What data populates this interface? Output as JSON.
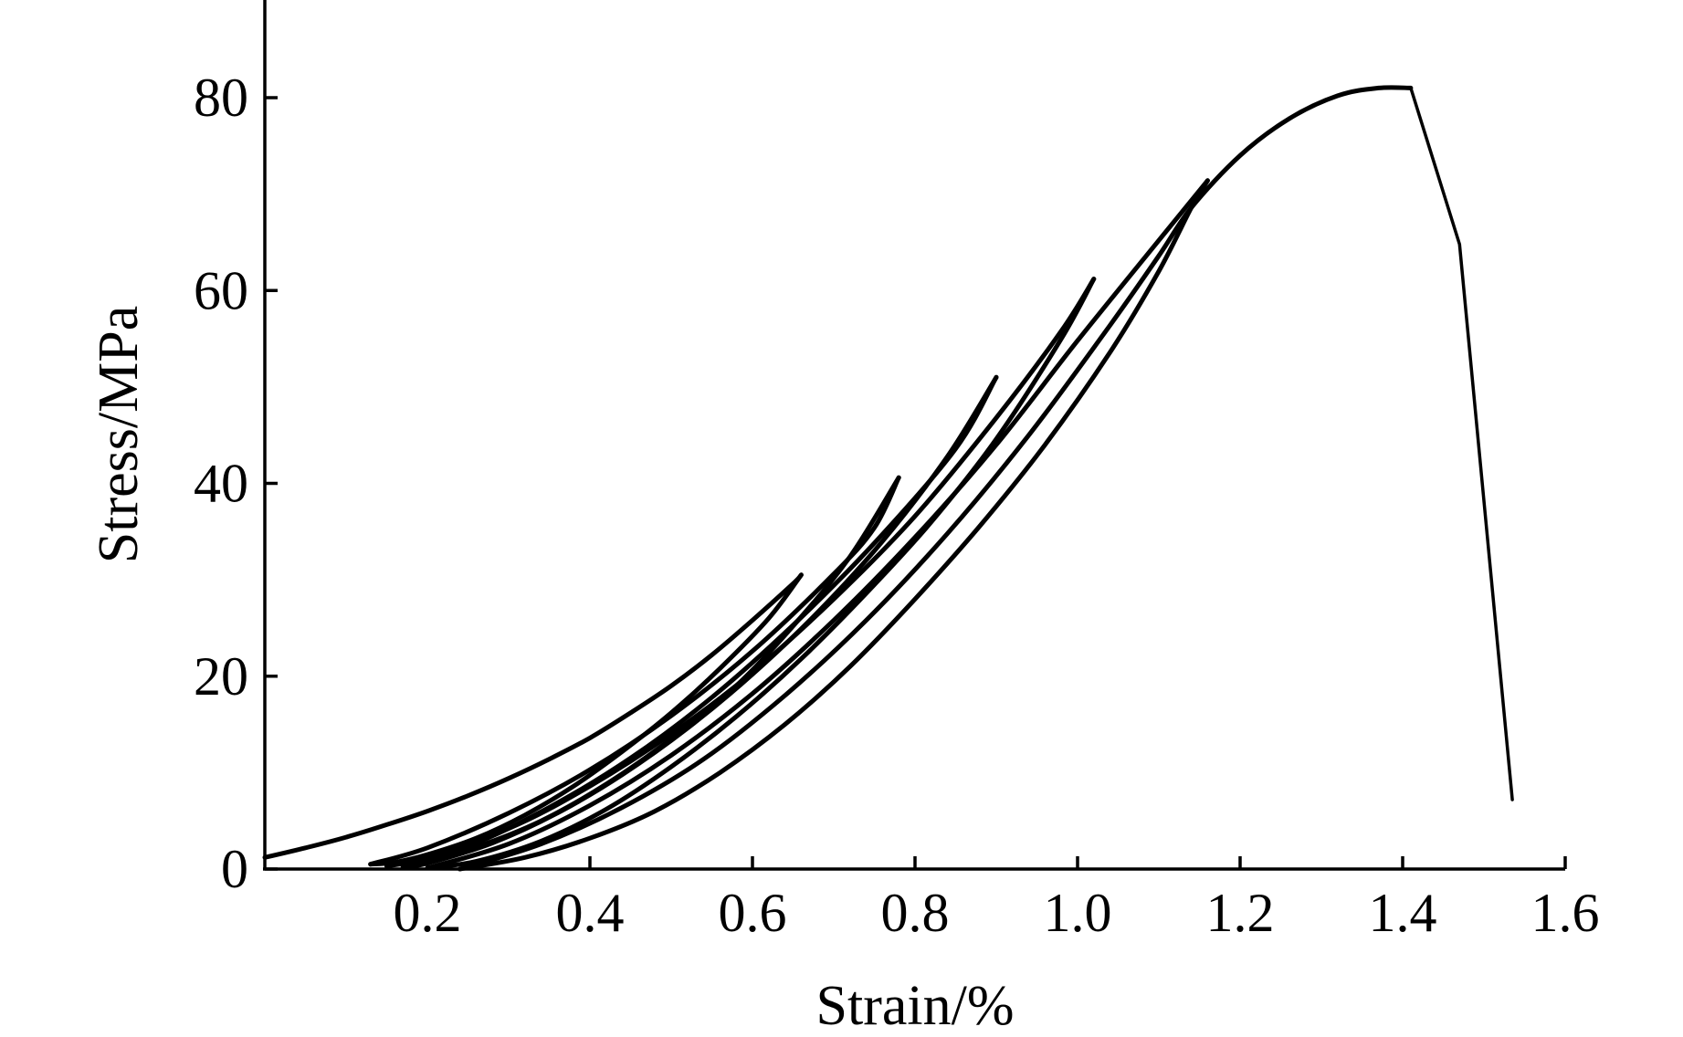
{
  "chart_data": {
    "type": "line",
    "title": "",
    "xlabel": "Strain/%",
    "ylabel": "Stress/MPa",
    "xlim": [
      0,
      1.6
    ],
    "ylim": [
      0,
      90
    ],
    "xticks": [
      {
        "value": 0.2,
        "label": "0.2"
      },
      {
        "value": 0.4,
        "label": "0.4"
      },
      {
        "value": 0.6,
        "label": "0.6"
      },
      {
        "value": 0.8,
        "label": "0.8"
      },
      {
        "value": 1.0,
        "label": "1.0"
      },
      {
        "value": 1.2,
        "label": "1.2"
      },
      {
        "value": 1.4,
        "label": "1.4"
      },
      {
        "value": 1.6,
        "label": "1.6"
      }
    ],
    "yticks": [
      {
        "value": 0,
        "label": "0"
      },
      {
        "value": 20,
        "label": "20"
      },
      {
        "value": 40,
        "label": "40"
      },
      {
        "value": 60,
        "label": "60"
      },
      {
        "value": 80,
        "label": "80"
      }
    ],
    "grid": false,
    "legend": "none",
    "series": [
      {
        "x": [
          0.0,
          0.05,
          0.1,
          0.15,
          0.2,
          0.25,
          0.3,
          0.35,
          0.4,
          0.45,
          0.5,
          0.55,
          0.6,
          0.65,
          0.66
        ],
        "y": [
          1.2,
          2.2,
          3.3,
          4.6,
          6.0,
          7.6,
          9.4,
          11.4,
          13.6,
          16.2,
          19.0,
          22.2,
          25.8,
          29.6,
          30.5
        ]
      },
      {
        "x": [
          0.66,
          0.62,
          0.56,
          0.5,
          0.44,
          0.38,
          0.32,
          0.26,
          0.2,
          0.16,
          0.13
        ],
        "y": [
          30.5,
          26.0,
          20.8,
          16.2,
          12.2,
          8.6,
          5.6,
          3.2,
          1.5,
          0.7,
          0.5
        ]
      },
      {
        "x": [
          0.13,
          0.2,
          0.3,
          0.4,
          0.5,
          0.6,
          0.7,
          0.75,
          0.78
        ],
        "y": [
          0.5,
          2.2,
          5.8,
          10.3,
          15.9,
          22.6,
          30.6,
          35.4,
          40.6
        ]
      },
      {
        "x": [
          0.78,
          0.72,
          0.65,
          0.58,
          0.5,
          0.42,
          0.34,
          0.26,
          0.2,
          0.15
        ],
        "y": [
          40.6,
          32.4,
          25.2,
          19.0,
          13.5,
          8.8,
          5.0,
          2.3,
          1.0,
          0.3
        ]
      },
      {
        "x": [
          0.15,
          0.25,
          0.35,
          0.45,
          0.55,
          0.65,
          0.75,
          0.85,
          0.9
        ],
        "y": [
          0.3,
          2.4,
          6.4,
          11.5,
          17.8,
          25.3,
          33.8,
          43.6,
          51.0
        ]
      },
      {
        "x": [
          0.9,
          0.84,
          0.76,
          0.68,
          0.6,
          0.52,
          0.44,
          0.36,
          0.28,
          0.2,
          0.17
        ],
        "y": [
          51.0,
          42.8,
          34.0,
          26.6,
          20.2,
          14.6,
          9.8,
          5.8,
          2.7,
          0.6,
          0.2
        ]
      },
      {
        "x": [
          0.17,
          0.3,
          0.4,
          0.5,
          0.6,
          0.7,
          0.8,
          0.9,
          0.98,
          1.02
        ],
        "y": [
          0.2,
          4.2,
          8.6,
          14.0,
          20.4,
          28.0,
          36.6,
          46.8,
          55.8,
          61.2
        ]
      },
      {
        "x": [
          1.02,
          0.98,
          0.9,
          0.82,
          0.74,
          0.66,
          0.58,
          0.5,
          0.42,
          0.34,
          0.26,
          0.2
        ],
        "y": [
          61.2,
          55.0,
          44.6,
          36.0,
          28.6,
          21.8,
          15.8,
          10.6,
          6.2,
          2.9,
          0.8,
          0.1
        ]
      },
      {
        "x": [
          0.2,
          0.3,
          0.4,
          0.5,
          0.6,
          0.7,
          0.8,
          0.9,
          1.0,
          1.1,
          1.16
        ],
        "y": [
          0.1,
          2.6,
          6.6,
          11.8,
          18.2,
          25.8,
          34.4,
          44.0,
          54.8,
          65.2,
          71.4
        ]
      },
      {
        "x": [
          1.16,
          1.14,
          1.1,
          1.04,
          0.96,
          0.88,
          0.8,
          0.72,
          0.64,
          0.56,
          0.48,
          0.4,
          0.32,
          0.24
        ],
        "y": [
          71.4,
          68.6,
          62.0,
          53.6,
          44.0,
          35.6,
          28.0,
          21.0,
          15.0,
          10.0,
          6.0,
          3.2,
          1.2,
          0.0
        ]
      },
      {
        "x": [
          0.24,
          0.34,
          0.44,
          0.54,
          0.64,
          0.74,
          0.84,
          0.94,
          1.04,
          1.1,
          1.14,
          1.2,
          1.26,
          1.32,
          1.37,
          1.41
        ],
        "y": [
          0.0,
          2.6,
          6.4,
          11.4,
          18.0,
          25.8,
          34.8,
          45.0,
          56.4,
          63.6,
          68.6,
          74.0,
          77.8,
          80.2,
          81.0,
          81.0
        ]
      },
      {
        "x": [
          1.41,
          1.47,
          1.535
        ],
        "y": [
          81.0,
          64.8,
          7.2
        ]
      }
    ]
  }
}
